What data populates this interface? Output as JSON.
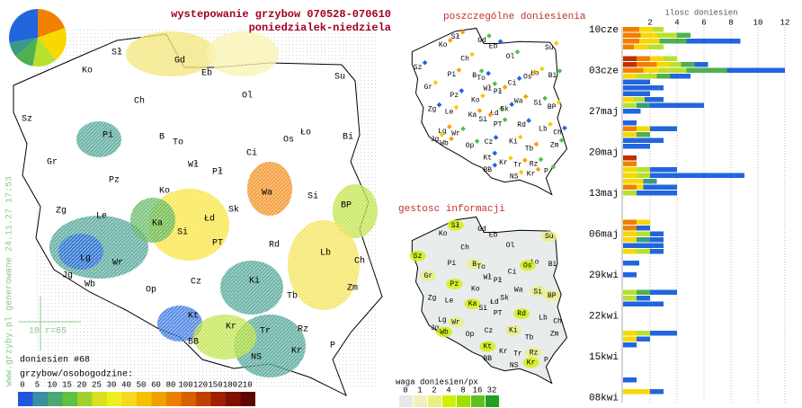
{
  "header": {
    "title": "wystepowanie grzybow 070528-070610",
    "subtitle": "poniedzialek-niedziela"
  },
  "map": {
    "cities": [
      "Sł",
      "Gd",
      "Eb",
      "Su",
      "Ko",
      "Ol",
      "Sz",
      "Ch",
      "Pi",
      "B",
      "To",
      "Ło",
      "Os",
      "Bi",
      "Ci",
      "Gr",
      "Pł",
      "Wł",
      "Pz",
      "Ko",
      "Wa",
      "Si",
      "Zg",
      "Le",
      "Ka",
      "Łd",
      "Sk",
      "BP",
      "Si",
      "PT",
      "Rd",
      "Lb",
      "Lg",
      "Wr",
      "Ch",
      "Jg",
      "Wb",
      "Op",
      "Cz",
      "Ki",
      "Tb",
      "Zm",
      "Kt",
      "Kr",
      "Tr",
      "Rz",
      "BB",
      "NS",
      "Kr",
      "P"
    ],
    "watermark": "www.grzyby.pl generowane 24.11.27 17:53",
    "scale_label": "10",
    "radius_label": "r=65",
    "count_label": "doniesien #68",
    "legend_title": "grzybow/osobogodzine:",
    "legend_values": [
      0,
      5,
      10,
      15,
      20,
      25,
      30,
      40,
      50,
      60,
      80,
      100,
      120,
      150,
      180,
      210
    ]
  },
  "reports_map": {
    "title": "poszczególne doniesienia"
  },
  "density_map": {
    "title": "gestosc informacji",
    "legend_title": "waga doniesien/px",
    "legend_values": [
      0,
      1,
      2,
      4,
      8,
      16,
      32
    ]
  },
  "chart_data": {
    "type": "stacked-hbar",
    "x_label": "ilosc doniesien",
    "xlim": [
      0,
      12
    ],
    "xticks": [
      2,
      4,
      6,
      8,
      10,
      12
    ],
    "grid": true,
    "segment_colors": [
      "#c03000",
      "#f08000",
      "#f8d800",
      "#b8e030",
      "#50b050",
      "#3a9a88",
      "#2266dd"
    ],
    "categories": [
      "10cze",
      null,
      null,
      null,
      null,
      null,
      null,
      "03cze",
      null,
      null,
      null,
      null,
      null,
      null,
      "27maj",
      null,
      null,
      null,
      null,
      null,
      null,
      "20maj",
      null,
      null,
      null,
      null,
      null,
      null,
      "13maj",
      null,
      null,
      null,
      null,
      null,
      null,
      "06maj",
      null,
      null,
      null,
      null,
      null,
      null,
      "29kwi",
      null,
      null,
      null,
      null,
      null,
      null,
      "22kwi",
      null,
      null,
      null,
      null,
      null,
      null,
      "15kwi",
      null,
      null,
      null,
      null,
      null,
      null,
      "08kwi"
    ],
    "rows": [
      [
        0,
        1.2,
        1,
        0.8,
        0,
        0,
        0
      ],
      [
        0,
        1.3,
        1.2,
        1.5,
        1,
        0,
        0
      ],
      [
        0,
        1.2,
        1.5,
        0,
        2,
        0,
        4
      ],
      [
        0,
        0.8,
        1,
        1.2,
        0,
        0,
        0
      ],
      [],
      [
        1,
        1,
        1,
        1,
        0,
        0,
        0
      ],
      [
        1,
        1.5,
        1,
        0.8,
        1,
        0,
        1
      ],
      [
        0,
        1.5,
        1.2,
        2,
        3,
        0,
        4.3
      ],
      [
        0,
        0,
        1,
        1.5,
        1,
        0,
        1.5
      ],
      [
        0,
        0,
        0,
        0,
        0,
        0,
        2
      ],
      [
        0,
        0,
        0,
        0,
        0,
        0,
        3
      ],
      [
        0,
        0,
        0,
        0,
        0,
        0,
        2
      ],
      [
        0,
        0,
        0.8,
        0.8,
        0,
        0,
        1.4
      ],
      [
        0,
        0,
        0,
        1,
        0,
        1,
        4
      ],
      [
        0,
        0,
        0,
        0,
        0,
        0,
        1.3
      ],
      [],
      [
        0,
        0,
        0,
        0,
        0,
        0,
        1
      ],
      [
        0,
        1,
        1,
        0,
        0,
        0,
        2
      ],
      [
        0,
        0,
        1,
        0,
        1,
        0,
        0
      ],
      [
        0,
        0,
        0,
        0,
        0,
        0,
        3
      ],
      [
        0,
        0,
        0,
        0,
        0,
        0,
        2
      ],
      [],
      [
        1,
        0,
        0,
        0,
        0,
        0,
        0
      ],
      [
        0,
        1,
        0,
        0,
        0,
        0,
        0
      ],
      [
        0,
        0,
        1,
        1,
        0,
        0,
        2
      ],
      [
        0,
        0,
        1,
        1,
        0,
        0,
        7
      ],
      [
        0,
        0,
        1.5,
        0,
        0,
        1,
        0
      ],
      [
        0,
        1,
        0.5,
        0,
        0,
        0,
        2.5
      ],
      [
        0,
        0,
        0,
        1,
        0,
        0,
        3
      ],
      [],
      [],
      [],
      [],
      [
        0,
        1,
        1,
        0,
        0,
        0,
        0
      ],
      [
        0,
        1,
        0,
        0,
        0,
        0,
        1
      ],
      [
        0,
        0,
        1,
        1,
        0,
        0,
        1
      ],
      [
        0,
        0,
        1,
        0,
        0,
        1,
        1
      ],
      [
        0,
        0,
        0,
        0,
        0,
        0,
        3
      ],
      [
        0,
        0,
        1,
        1,
        0,
        0,
        1
      ],
      [],
      [
        0,
        0,
        0,
        0,
        0,
        0,
        1.2
      ],
      [],
      [
        0,
        0,
        0,
        0,
        0,
        0,
        1
      ],
      [],
      [],
      [
        0,
        0,
        0,
        1,
        1,
        0,
        2
      ],
      [
        0,
        0,
        0,
        1,
        0,
        0,
        1
      ],
      [
        0,
        0,
        0,
        0,
        0,
        0,
        3
      ],
      [],
      [],
      [],
      [],
      [
        0,
        0,
        1,
        1,
        0,
        0,
        2
      ],
      [
        0,
        0,
        1,
        0,
        0,
        0,
        1
      ],
      [
        0,
        0,
        0,
        0,
        0,
        0,
        1
      ],
      [],
      [],
      [],
      [],
      [],
      [
        0,
        0,
        0,
        0,
        0,
        0,
        1
      ],
      [],
      [
        0,
        0,
        2,
        0,
        0,
        0,
        1
      ],
      []
    ]
  }
}
